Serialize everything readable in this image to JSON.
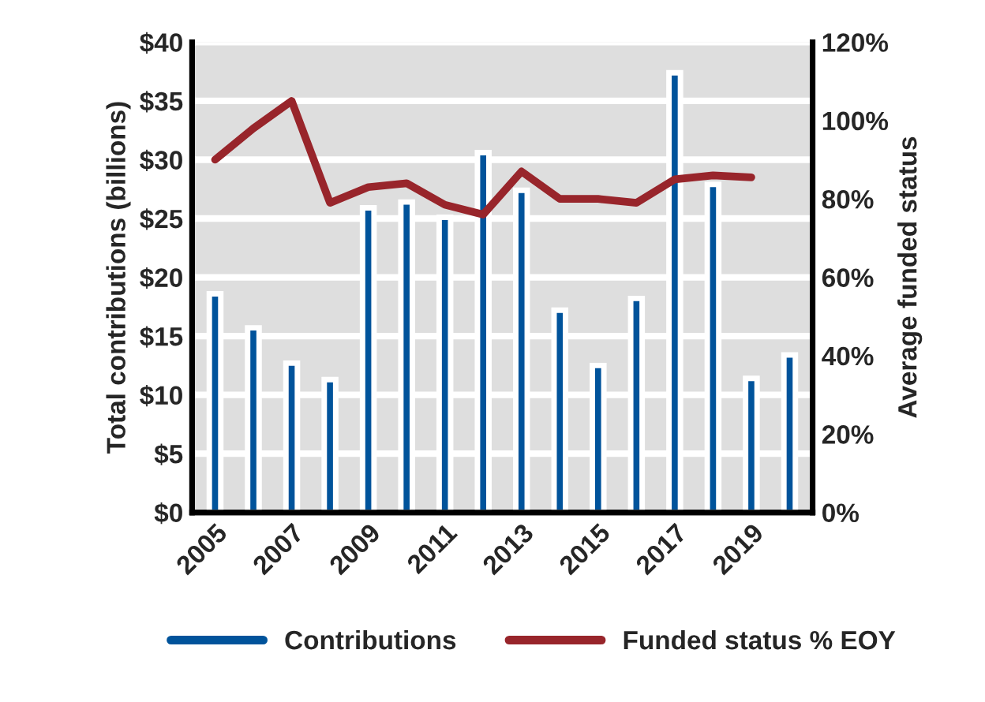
{
  "chart_data": {
    "type": "bar",
    "categories": [
      "2005",
      null,
      "2007",
      null,
      "2009",
      null,
      "2011",
      null,
      "2013",
      null,
      "2015",
      null,
      "2017",
      null,
      "2019",
      null
    ],
    "ylabel": "Total contributions (billions)",
    "y2label": "Average funded status",
    "series": [
      {
        "name": "Contributions",
        "color": "#00539b",
        "values": [
          18.6,
          15.7,
          12.7,
          11.3,
          25.9,
          26.4,
          25.1,
          30.6,
          27.4,
          17.2,
          12.5,
          18.2,
          37.4,
          27.9,
          11.4,
          13.4
        ]
      },
      {
        "name": "Funded status % EOY",
        "type": "line",
        "axis": "y2",
        "color": "#98252b",
        "values": [
          90,
          98,
          105,
          79,
          83,
          84,
          78.5,
          76,
          87,
          80,
          80,
          79,
          85,
          86,
          85.5,
          null
        ]
      }
    ],
    "ylim": [
      0,
      40
    ],
    "yticks": [
      {
        "value": 0,
        "label": "$0"
      },
      {
        "value": 5,
        "label": "$5"
      },
      {
        "value": 10,
        "label": "$10"
      },
      {
        "value": 15,
        "label": "$15"
      },
      {
        "value": 20,
        "label": "$20"
      },
      {
        "value": 25,
        "label": "$25"
      },
      {
        "value": 30,
        "label": "$30"
      },
      {
        "value": 35,
        "label": "$35"
      },
      {
        "value": 40,
        "label": "$40"
      }
    ],
    "y2lim": [
      0,
      120
    ],
    "y2ticks": [
      {
        "value": 0,
        "label": "0%"
      },
      {
        "value": 20,
        "label": "20%"
      },
      {
        "value": 40,
        "label": "40%"
      },
      {
        "value": 60,
        "label": "60%"
      },
      {
        "value": 80,
        "label": "80%"
      },
      {
        "value": 100,
        "label": "100%"
      },
      {
        "value": 120,
        "label": "120%"
      }
    ],
    "grid": "y",
    "legend": "bottom"
  }
}
